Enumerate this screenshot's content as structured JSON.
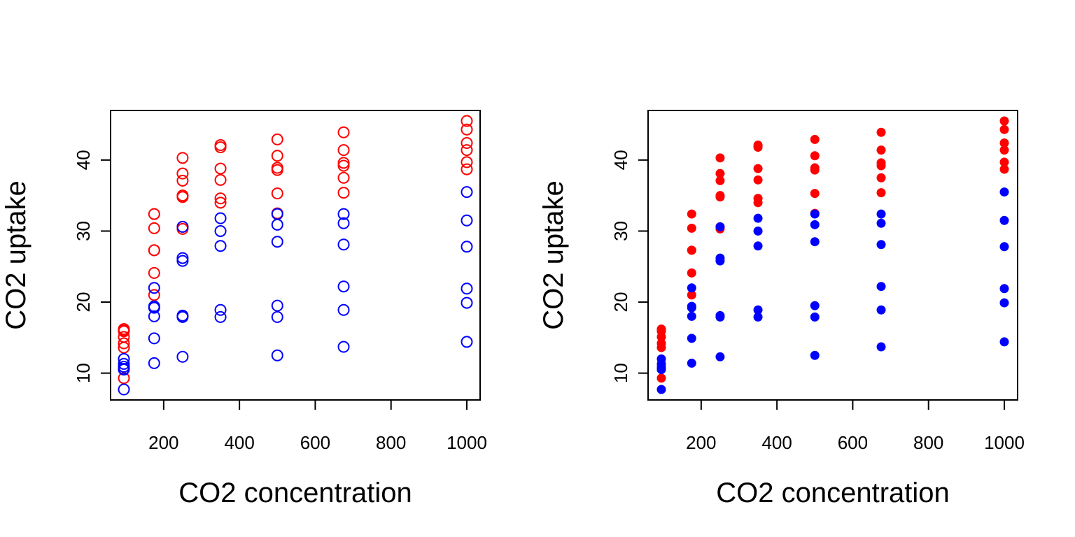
{
  "chart_data": [
    {
      "type": "scatter",
      "marker": "open-circle",
      "xlabel": "CO2 concentration",
      "ylabel": "CO2 uptake",
      "xlim": [
        95,
        1000
      ],
      "ylim": [
        7.7,
        45.5
      ],
      "xticks": [
        "200",
        "400",
        "600",
        "800",
        "1000"
      ],
      "yticks": [
        "10",
        "20",
        "30",
        "40"
      ],
      "grid": false,
      "series": [
        {
          "color": "#ff0000",
          "x": [
            95,
            95,
            95,
            95,
            95,
            95,
            95,
            175,
            175,
            175,
            175,
            175,
            175,
            250,
            250,
            250,
            250,
            250,
            250,
            250,
            350,
            350,
            350,
            350,
            350,
            350,
            500,
            500,
            500,
            500,
            500,
            500,
            675,
            675,
            675,
            675,
            675,
            675,
            1000,
            1000,
            1000,
            1000,
            1000,
            1000
          ],
          "y": [
            16.2,
            15.9,
            15.1,
            14.2,
            13.6,
            9.3,
            16.0,
            32.4,
            30.4,
            27.3,
            27.3,
            24.1,
            21.0,
            40.3,
            38.1,
            37.1,
            35.0,
            34.8,
            30.6,
            30.3,
            42.1,
            41.8,
            38.8,
            37.2,
            34.6,
            34.0,
            42.9,
            40.6,
            38.9,
            38.6,
            35.3,
            32.5,
            43.9,
            41.4,
            39.6,
            39.2,
            37.5,
            35.4,
            45.5,
            44.3,
            42.4,
            41.4,
            39.7,
            38.7
          ]
        },
        {
          "color": "#0000ff",
          "x": [
            95,
            95,
            95,
            95,
            95,
            95,
            175,
            175,
            175,
            175,
            175,
            175,
            250,
            250,
            250,
            250,
            250,
            250,
            350,
            350,
            350,
            350,
            350,
            500,
            500,
            500,
            500,
            500,
            500,
            675,
            675,
            675,
            675,
            675,
            675,
            1000,
            1000,
            1000,
            1000,
            1000,
            1000
          ],
          "y": [
            12.0,
            11.3,
            10.9,
            10.6,
            10.5,
            7.7,
            22.0,
            19.4,
            19.2,
            18.0,
            14.9,
            11.4,
            30.6,
            26.2,
            25.8,
            18.1,
            17.9,
            12.3,
            31.8,
            30.0,
            27.9,
            18.9,
            17.9,
            32.4,
            30.9,
            28.5,
            19.5,
            17.9,
            12.5,
            32.4,
            31.1,
            28.1,
            22.2,
            18.9,
            13.7,
            35.5,
            31.5,
            27.8,
            21.9,
            19.9,
            14.4
          ]
        }
      ]
    },
    {
      "type": "scatter",
      "marker": "filled-circle",
      "xlabel": "CO2 concentration",
      "ylabel": "CO2 uptake",
      "xlim": [
        95,
        1000
      ],
      "ylim": [
        7.7,
        45.5
      ],
      "xticks": [
        "200",
        "400",
        "600",
        "800",
        "1000"
      ],
      "yticks": [
        "10",
        "20",
        "30",
        "40"
      ],
      "grid": false,
      "series": [
        {
          "color": "#ff0000",
          "x": [
            95,
            95,
            95,
            95,
            95,
            95,
            95,
            175,
            175,
            175,
            175,
            175,
            175,
            250,
            250,
            250,
            250,
            250,
            250,
            250,
            350,
            350,
            350,
            350,
            350,
            350,
            500,
            500,
            500,
            500,
            500,
            500,
            675,
            675,
            675,
            675,
            675,
            675,
            1000,
            1000,
            1000,
            1000,
            1000,
            1000
          ],
          "y": [
            16.2,
            15.9,
            15.1,
            14.2,
            13.6,
            9.3,
            16.0,
            32.4,
            30.4,
            27.3,
            27.3,
            24.1,
            21.0,
            40.3,
            38.1,
            37.1,
            35.0,
            34.8,
            30.6,
            30.3,
            42.1,
            41.8,
            38.8,
            37.2,
            34.6,
            34.0,
            42.9,
            40.6,
            38.9,
            38.6,
            35.3,
            32.5,
            43.9,
            41.4,
            39.6,
            39.2,
            37.5,
            35.4,
            45.5,
            44.3,
            42.4,
            41.4,
            39.7,
            38.7
          ]
        },
        {
          "color": "#0000ff",
          "x": [
            95,
            95,
            95,
            95,
            95,
            95,
            175,
            175,
            175,
            175,
            175,
            175,
            250,
            250,
            250,
            250,
            250,
            250,
            350,
            350,
            350,
            350,
            350,
            500,
            500,
            500,
            500,
            500,
            500,
            675,
            675,
            675,
            675,
            675,
            675,
            1000,
            1000,
            1000,
            1000,
            1000,
            1000
          ],
          "y": [
            12.0,
            11.3,
            10.9,
            10.6,
            10.5,
            7.7,
            22.0,
            19.4,
            19.2,
            18.0,
            14.9,
            11.4,
            30.6,
            26.2,
            25.8,
            18.1,
            17.9,
            12.3,
            31.8,
            30.0,
            27.9,
            18.9,
            17.9,
            32.4,
            30.9,
            28.5,
            19.5,
            17.9,
            12.5,
            32.4,
            31.1,
            28.1,
            22.2,
            18.9,
            13.7,
            35.5,
            31.5,
            27.8,
            21.9,
            19.9,
            14.4
          ]
        }
      ]
    }
  ]
}
